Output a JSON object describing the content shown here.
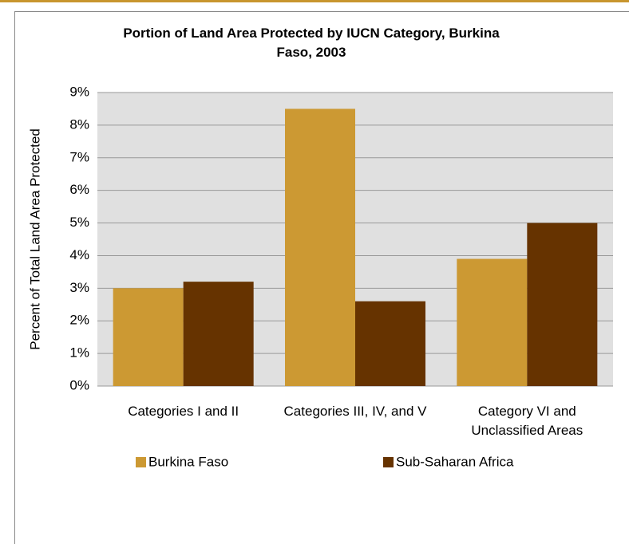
{
  "chart_data": {
    "type": "bar",
    "title": "Portion of Land Area Protected by IUCN Category, Burkina Faso, 2003",
    "y_label": "Percent of Total Land Area Protected",
    "categories": [
      "Categories I and II",
      "Categories III, IV, and V",
      "Category VI and Unclassified Areas"
    ],
    "series": [
      {
        "name": "Burkina Faso",
        "color": "#cc9933",
        "values": [
          3.0,
          8.5,
          3.9
        ]
      },
      {
        "name": "Sub-Saharan Africa",
        "color": "#663300",
        "values": [
          3.2,
          2.6,
          5.0
        ]
      }
    ],
    "ylim": [
      0,
      9
    ],
    "yticks": [
      {
        "value": 0,
        "label": "0%"
      },
      {
        "value": 1,
        "label": "1%"
      },
      {
        "value": 2,
        "label": "2%"
      },
      {
        "value": 3,
        "label": "3%"
      },
      {
        "value": 4,
        "label": "4%"
      },
      {
        "value": 5,
        "label": "5%"
      },
      {
        "value": 6,
        "label": "6%"
      },
      {
        "value": 7,
        "label": "7%"
      },
      {
        "value": 8,
        "label": "8%"
      },
      {
        "value": 9,
        "label": "9%"
      }
    ],
    "grid": true,
    "legend": "bottom"
  }
}
